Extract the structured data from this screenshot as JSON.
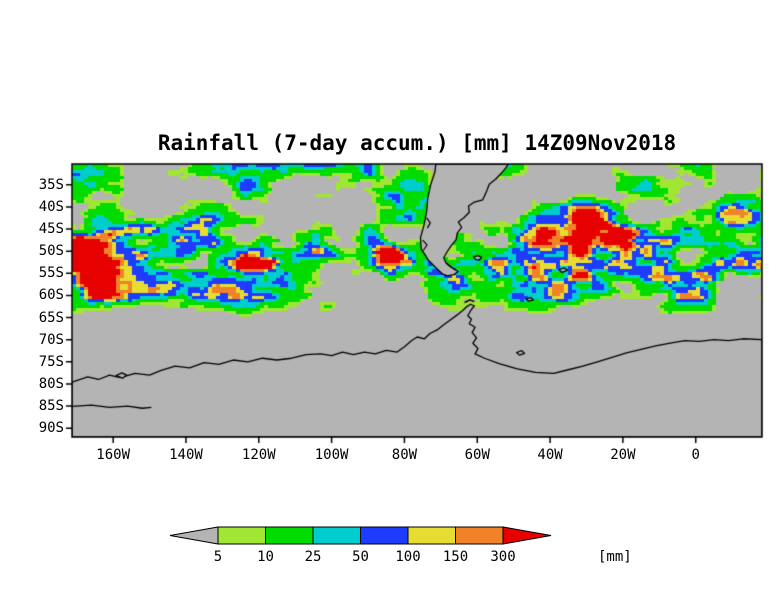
{
  "title": "Rainfall (7-day accum.) [mm] 14Z09Nov2018",
  "axes": {
    "y_labels": [
      "35S",
      "40S",
      "45S",
      "50S",
      "55S",
      "60S",
      "65S",
      "70S",
      "75S",
      "80S",
      "85S",
      "90S"
    ],
    "x_labels": [
      "160W",
      "140W",
      "120W",
      "100W",
      "80W",
      "60W",
      "40W",
      "20W",
      "0"
    ]
  },
  "colorbar": {
    "unit": "[mm]",
    "ticks": [
      "5",
      "10",
      "25",
      "50",
      "100",
      "150",
      "300"
    ],
    "colors": [
      "#b4b4b4",
      "#a0e632",
      "#00dc00",
      "#00cdcd",
      "#1e3cff",
      "#e6dc32",
      "#f08228",
      "#e60000"
    ]
  },
  "map_colors": {
    "ocean_no_data": "#b4b4b4",
    "land_fill": "#b4b4b4",
    "coastline": "#000000",
    "background": "#ffffff"
  },
  "chart_data": {
    "type": "heatmap",
    "title": "Rainfall (7-day accum.) [mm] 14Z09Nov2018",
    "variable": "Rainfall, 7-day accumulation",
    "unit": "mm",
    "valid_label": "14Z09Nov2018",
    "levels_mm": [
      5,
      10,
      25,
      50,
      100,
      150,
      300
    ],
    "level_colors": [
      "#b4b4b4",
      "#a0e632",
      "#00dc00",
      "#00cdcd",
      "#1e3cff",
      "#e6dc32",
      "#f08228",
      "#e60000"
    ],
    "lat_tick_labels": [
      "35S",
      "40S",
      "45S",
      "50S",
      "55S",
      "60S",
      "65S",
      "70S",
      "75S",
      "80S",
      "85S",
      "90S"
    ],
    "lon_tick_labels": [
      "160W",
      "140W",
      "120W",
      "100W",
      "80W",
      "60W",
      "40W",
      "20W",
      "0"
    ],
    "approx_extent": {
      "lon_west_deg": -171,
      "lon_east_deg": 18,
      "lat_north_deg": -30,
      "lat_south_deg": -92
    },
    "legend_position": "bottom",
    "notes": "Storm-track rainfall band over the Southern Ocean between ~35S and ~62S (mostly 10-50 mm, embedded 50-300 mm cells near 165W/52S and 85W/49S); no data (gray) south of ~66S; coastlines of southern South America, Falklands and Antarctica drawn in black."
  }
}
